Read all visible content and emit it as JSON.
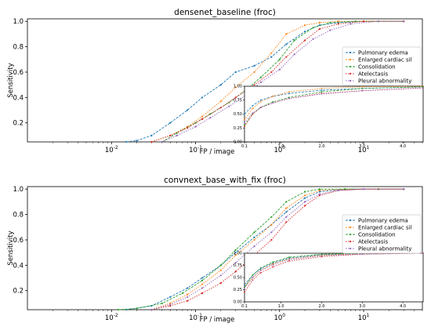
{
  "colors": {
    "pulmonary_edema": "#1f77b4",
    "enlarged_cardiac": "#ff7f0e",
    "consolidation": "#2ca02c",
    "atelectasis": "#d62728",
    "pleural_abnormality": "#9467bd"
  },
  "chart_data": [
    {
      "type": "line",
      "title": "densenet_baseline (froc)",
      "xlabel": "FP / image",
      "ylabel": "Sensitivity",
      "xscale": "log",
      "xlim": [
        0.001,
        50
      ],
      "ylim": [
        0.05,
        1.02
      ],
      "x_ticks": [
        "10^-2",
        "10^-1",
        "10^0",
        "10^1"
      ],
      "y_ticks": [
        "0.2",
        "0.4",
        "0.6",
        "0.8",
        "1.0"
      ],
      "legend_position": "right",
      "series": [
        {
          "name": "Pulmonary edema",
          "x": [
            0.015,
            0.02,
            0.03,
            0.05,
            0.08,
            0.12,
            0.2,
            0.3,
            0.5,
            0.8,
            1.2,
            2,
            3,
            5,
            10,
            30
          ],
          "y": [
            0.05,
            0.06,
            0.1,
            0.2,
            0.3,
            0.4,
            0.5,
            0.6,
            0.65,
            0.72,
            0.82,
            0.92,
            0.97,
            0.99,
            1.0,
            1.0
          ]
        },
        {
          "name": "Enlarged cardiac sil",
          "x": [
            0.03,
            0.05,
            0.08,
            0.12,
            0.2,
            0.3,
            0.5,
            0.8,
            1.2,
            2,
            3,
            5,
            10,
            30
          ],
          "y": [
            0.05,
            0.1,
            0.17,
            0.25,
            0.37,
            0.48,
            0.6,
            0.75,
            0.9,
            0.97,
            0.99,
            1.0,
            1.0,
            1.0
          ]
        },
        {
          "name": "Consolidation",
          "x": [
            0.04,
            0.06,
            0.1,
            0.15,
            0.25,
            0.4,
            0.6,
            1,
            1.5,
            2.5,
            4,
            8,
            15,
            30
          ],
          "y": [
            0.05,
            0.12,
            0.2,
            0.27,
            0.36,
            0.46,
            0.56,
            0.7,
            0.85,
            0.95,
            0.99,
            1.0,
            1.0,
            1.0
          ]
        },
        {
          "name": "Atelectasis",
          "x": [
            0.03,
            0.05,
            0.08,
            0.12,
            0.2,
            0.3,
            0.5,
            0.8,
            1.2,
            2,
            3,
            5,
            10,
            30
          ],
          "y": [
            0.05,
            0.1,
            0.16,
            0.23,
            0.32,
            0.4,
            0.5,
            0.6,
            0.72,
            0.85,
            0.94,
            0.98,
            1.0,
            1.0
          ]
        },
        {
          "name": "Pleural abnormality",
          "x": [
            0.04,
            0.06,
            0.1,
            0.15,
            0.25,
            0.4,
            0.6,
            1,
            1.5,
            2.5,
            4,
            7,
            15,
            30
          ],
          "y": [
            0.05,
            0.1,
            0.17,
            0.24,
            0.33,
            0.42,
            0.52,
            0.62,
            0.74,
            0.86,
            0.93,
            0.98,
            1.0,
            1.0
          ]
        }
      ],
      "inset": {
        "type": "line",
        "xlim": [
          0.1,
          4.5
        ],
        "ylim": [
          0.0,
          1.0
        ],
        "x_ticks": [
          "0.1",
          "1.0",
          "2.0",
          "3.0",
          "4.0"
        ],
        "y_ticks": [
          "0.00",
          "0.25",
          "0.50",
          "0.75",
          "1.00"
        ],
        "series": [
          {
            "name": "Pulmonary edema",
            "x": [
              0.1,
              0.3,
              0.5,
              0.8,
              1.2,
              2,
              3,
              4.5
            ],
            "y": [
              0.5,
              0.65,
              0.75,
              0.82,
              0.87,
              0.93,
              0.96,
              0.99
            ]
          },
          {
            "name": "Enlarged cardiac sil",
            "x": [
              0.1,
              0.3,
              0.5,
              0.8,
              1.2,
              2,
              3,
              4.5
            ],
            "y": [
              0.4,
              0.6,
              0.72,
              0.82,
              0.9,
              0.96,
              0.99,
              1.0
            ]
          },
          {
            "name": "Consolidation",
            "x": [
              0.1,
              0.3,
              0.5,
              0.8,
              1.2,
              2,
              3,
              4.5
            ],
            "y": [
              0.3,
              0.5,
              0.62,
              0.72,
              0.8,
              0.9,
              0.96,
              0.99
            ]
          },
          {
            "name": "Atelectasis",
            "x": [
              0.1,
              0.3,
              0.5,
              0.8,
              1.2,
              2,
              3,
              4.5
            ],
            "y": [
              0.28,
              0.5,
              0.62,
              0.7,
              0.78,
              0.87,
              0.92,
              0.97
            ]
          },
          {
            "name": "Pleural abnormality",
            "x": [
              0.1,
              0.3,
              0.5,
              0.8,
              1.2,
              2,
              3,
              4.5
            ],
            "y": [
              0.35,
              0.52,
              0.62,
              0.7,
              0.78,
              0.86,
              0.92,
              0.97
            ]
          }
        ]
      }
    },
    {
      "type": "line",
      "title": "convnext_base_with_fix (froc)",
      "xlabel": "FP / image",
      "ylabel": "Sensitivity",
      "xscale": "log",
      "xlim": [
        0.001,
        50
      ],
      "ylim": [
        0.05,
        1.02
      ],
      "x_ticks": [
        "10^-2",
        "10^-1",
        "10^0",
        "10^1"
      ],
      "y_ticks": [
        "0.2",
        "0.4",
        "0.6",
        "0.8",
        "1.0"
      ],
      "legend_position": "right",
      "series": [
        {
          "name": "Pulmonary edema",
          "x": [
            0.015,
            0.03,
            0.05,
            0.08,
            0.12,
            0.2,
            0.3,
            0.5,
            0.8,
            1.2,
            2,
            3,
            6,
            15,
            30
          ],
          "y": [
            0.05,
            0.08,
            0.15,
            0.22,
            0.3,
            0.4,
            0.5,
            0.62,
            0.72,
            0.82,
            0.93,
            0.98,
            1.0,
            1.0,
            1.0
          ]
        },
        {
          "name": "Enlarged cardiac sil",
          "x": [
            0.03,
            0.05,
            0.08,
            0.12,
            0.2,
            0.3,
            0.5,
            0.8,
            1.2,
            2,
            3,
            6,
            15,
            30
          ],
          "y": [
            0.05,
            0.1,
            0.17,
            0.25,
            0.36,
            0.48,
            0.6,
            0.72,
            0.85,
            0.95,
            0.99,
            1.0,
            1.0,
            1.0
          ]
        },
        {
          "name": "Consolidation",
          "x": [
            0.012,
            0.02,
            0.04,
            0.07,
            0.12,
            0.2,
            0.3,
            0.5,
            0.8,
            1.2,
            2,
            3,
            6,
            15,
            30
          ],
          "y": [
            0.05,
            0.06,
            0.1,
            0.18,
            0.28,
            0.4,
            0.52,
            0.66,
            0.78,
            0.9,
            0.98,
            1.0,
            1.0,
            1.0,
            1.0
          ]
        },
        {
          "name": "Atelectasis",
          "x": [
            0.03,
            0.05,
            0.08,
            0.12,
            0.2,
            0.3,
            0.5,
            0.8,
            1.2,
            2,
            3,
            5,
            10,
            30
          ],
          "y": [
            0.05,
            0.08,
            0.12,
            0.18,
            0.26,
            0.35,
            0.48,
            0.6,
            0.74,
            0.87,
            0.95,
            0.99,
            1.0,
            1.0
          ]
        },
        {
          "name": "Pleural abnormality",
          "x": [
            0.03,
            0.05,
            0.08,
            0.12,
            0.2,
            0.3,
            0.5,
            0.8,
            1.2,
            2,
            3,
            5,
            10,
            30
          ],
          "y": [
            0.05,
            0.09,
            0.15,
            0.22,
            0.32,
            0.42,
            0.55,
            0.66,
            0.78,
            0.9,
            0.96,
            0.99,
            1.0,
            1.0
          ]
        }
      ],
      "inset": {
        "type": "line",
        "xlim": [
          0.1,
          4.5
        ],
        "ylim": [
          0.0,
          1.0
        ],
        "x_ticks": [
          "0.1",
          "1.0",
          "2.0",
          "3.0",
          "4.0"
        ],
        "y_ticks": [
          "0.00",
          "0.25",
          "0.50",
          "0.75",
          "1.00"
        ],
        "series": [
          {
            "name": "Pulmonary edema",
            "x": [
              0.1,
              0.3,
              0.5,
              0.8,
              1.2,
              2,
              3,
              4.5
            ],
            "y": [
              0.35,
              0.55,
              0.68,
              0.8,
              0.9,
              0.97,
              0.99,
              1.0
            ]
          },
          {
            "name": "Enlarged cardiac sil",
            "x": [
              0.1,
              0.3,
              0.5,
              0.8,
              1.2,
              2,
              3,
              4.5
            ],
            "y": [
              0.3,
              0.5,
              0.65,
              0.78,
              0.88,
              0.96,
              0.99,
              1.0
            ]
          },
          {
            "name": "Consolidation",
            "x": [
              0.1,
              0.3,
              0.5,
              0.8,
              1.2,
              2,
              3,
              4.5
            ],
            "y": [
              0.3,
              0.55,
              0.7,
              0.82,
              0.92,
              0.98,
              1.0,
              1.0
            ]
          },
          {
            "name": "Atelectasis",
            "x": [
              0.1,
              0.3,
              0.5,
              0.8,
              1.2,
              2,
              3,
              4.5
            ],
            "y": [
              0.2,
              0.45,
              0.6,
              0.72,
              0.84,
              0.93,
              0.98,
              1.0
            ]
          },
          {
            "name": "Pleural abnormality",
            "x": [
              0.1,
              0.3,
              0.5,
              0.8,
              1.2,
              2,
              3,
              4.5
            ],
            "y": [
              0.28,
              0.5,
              0.65,
              0.76,
              0.87,
              0.95,
              0.98,
              1.0
            ]
          }
        ]
      }
    }
  ]
}
